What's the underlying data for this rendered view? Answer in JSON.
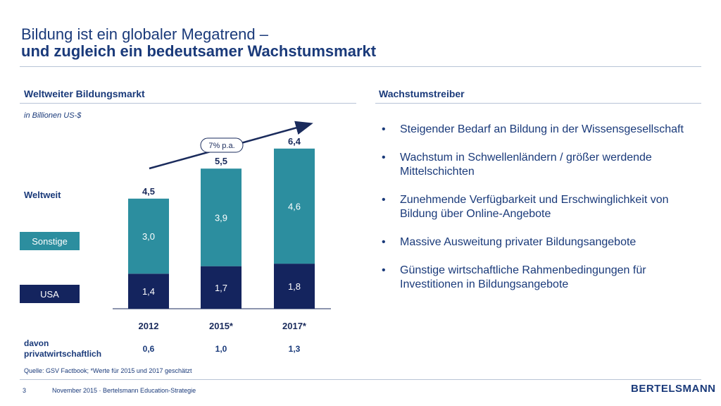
{
  "title": {
    "line1": "Bildung ist ein globaler Megatrend –",
    "line2": "und zugleich ein bedeutsamer Wachstumsmarkt"
  },
  "left": {
    "heading": "Weltweiter Bildungsmarkt",
    "unit_note": "in Billionen US-$",
    "row_label": "Weltweit",
    "legend": {
      "sonstige": "Sonstige",
      "usa": "USA"
    },
    "davon_label": "davon\nprivatwirtschaftlich",
    "private_values": [
      "0,6",
      "1,0",
      "1,3"
    ]
  },
  "right": {
    "heading": "Wachstumstreiber",
    "bullets": [
      {
        "text": "Steigender Bedarf an Bildung in der Wissensgesellschaft"
      },
      {
        "text": "Wachstum in Schwellenländern / größer werdende Mittelschichten"
      },
      {
        "text": "Zunehmende Verfügbarkeit und Erschwinglichkeit von Bildung über Online-Angebote"
      },
      {
        "text": "Massive Ausweitung privater Bildungsangebote"
      },
      {
        "text": "Günstige wirtschaftliche Rahmenbedingungen für Investitionen in Bildungsangebote"
      }
    ]
  },
  "footer": {
    "source": "Quelle: GSV Factbook; *Werte für 2015 und 2017 geschätzt",
    "page": "3",
    "text": "November 2015 · Bertelsmann Education-Strategie",
    "logo": "BERTELSMANN"
  },
  "chart_data": {
    "type": "bar",
    "stacked": true,
    "title": "Weltweiter Bildungsmarkt",
    "ylabel": "in Billionen US-$",
    "categories": [
      "2012",
      "2015*",
      "2017*"
    ],
    "series": [
      {
        "name": "USA",
        "values": [
          1.4,
          1.7,
          1.8
        ],
        "labels": [
          "1,4",
          "1,7",
          "1,8"
        ],
        "color": "#14245e"
      },
      {
        "name": "Sonstige",
        "values": [
          3.0,
          3.9,
          4.6
        ],
        "labels": [
          "3,0",
          "3,9",
          "4,6"
        ],
        "color": "#2c8e9f"
      }
    ],
    "totals": [
      4.5,
      5.5,
      6.4
    ],
    "total_labels": [
      "4,5",
      "5,5",
      "6,4"
    ],
    "growth_annotation": "7% p.a.",
    "ylim": [
      0,
      6.4
    ]
  }
}
